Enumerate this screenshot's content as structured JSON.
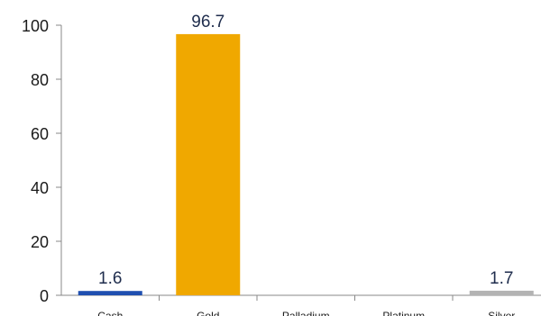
{
  "chart_data": {
    "type": "bar",
    "title": "",
    "xlabel": "",
    "ylabel": "",
    "categories": [
      "Cash",
      "Gold",
      "Palladium",
      "Platinum",
      "Silver"
    ],
    "values": [
      1.6,
      96.7,
      0,
      0,
      1.7
    ],
    "data_labels": [
      "1.6",
      "96.7",
      "",
      "",
      "1.7"
    ],
    "colors": [
      "#1f4fb0",
      "#f0a800",
      "#c8c8c8",
      "#c8c8c8",
      "#b3b3b3"
    ],
    "ylim": [
      0,
      100
    ],
    "yticks": [
      0,
      20,
      40,
      60,
      80,
      100
    ],
    "grid": false,
    "legend": "none"
  }
}
